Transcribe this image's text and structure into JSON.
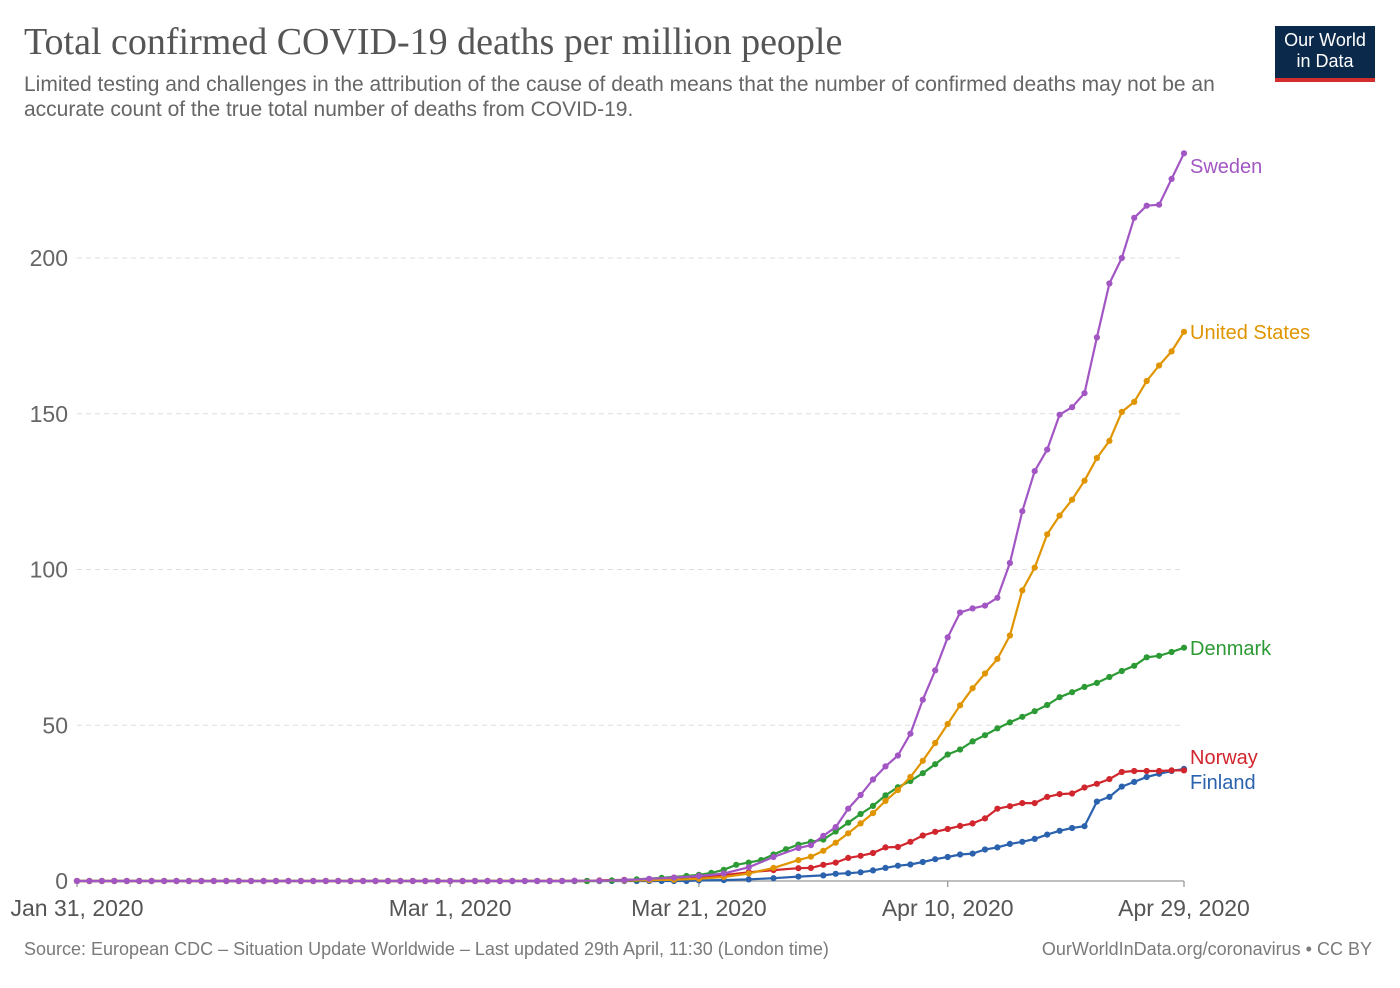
{
  "title": "Total confirmed COVID-19 deaths per million people",
  "subtitle": "Limited testing and challenges in the attribution of the cause of death means that the number of confirmed deaths may not be an accurate count of the true total number of deaths from COVID-19.",
  "logo": {
    "line1": "Our World",
    "line2": "in Data"
  },
  "footer": {
    "source": "Source: European CDC – Situation Update Worldwide – Last updated 29th April, 11:30 (London time)",
    "credit": "OurWorldInData.org/coronavirus • CC BY"
  },
  "chart_data": {
    "type": "line",
    "x_start": "2020-01-31",
    "x_end": "2020-04-29",
    "y_ticks": [
      0,
      50,
      100,
      150,
      200
    ],
    "x_ticks": [
      {
        "date": "2020-01-31",
        "label": "Jan 31, 2020"
      },
      {
        "date": "2020-03-01",
        "label": "Mar 1, 2020"
      },
      {
        "date": "2020-03-21",
        "label": "Mar 21, 2020"
      },
      {
        "date": "2020-04-10",
        "label": "Apr 10, 2020"
      },
      {
        "date": "2020-04-29",
        "label": "Apr 29, 2020"
      }
    ],
    "ylim": [
      0,
      232
    ],
    "grid": true,
    "legend": "end-of-line labels",
    "series": [
      {
        "name": "Sweden",
        "color": "#a256c3",
        "points": [
          [
            "2020-03-11",
            0.1
          ],
          [
            "2020-03-13",
            0.1
          ],
          [
            "2020-03-15",
            0.3
          ],
          [
            "2020-03-17",
            0.7
          ],
          [
            "2020-03-19",
            1.1
          ],
          [
            "2020-03-21",
            1.6
          ],
          [
            "2020-03-23",
            2.4
          ],
          [
            "2020-03-25",
            4.4
          ],
          [
            "2020-03-27",
            7.7
          ],
          [
            "2020-03-29",
            10.6
          ],
          [
            "2020-03-30",
            11.5
          ],
          [
            "2020-03-31",
            14.5
          ],
          [
            "2020-04-01",
            17.3
          ],
          [
            "2020-04-02",
            23.2
          ],
          [
            "2020-04-03",
            27.6
          ],
          [
            "2020-04-04",
            32.6
          ],
          [
            "2020-04-05",
            36.8
          ],
          [
            "2020-04-06",
            40.3
          ],
          [
            "2020-04-07",
            47.3
          ],
          [
            "2020-04-08",
            58.2
          ],
          [
            "2020-04-09",
            67.6
          ],
          [
            "2020-04-10",
            78.2
          ],
          [
            "2020-04-11",
            86.2
          ],
          [
            "2020-04-12",
            87.5
          ],
          [
            "2020-04-13",
            88.4
          ],
          [
            "2020-04-14",
            90.9
          ],
          [
            "2020-04-15",
            102.1
          ],
          [
            "2020-04-16",
            118.7
          ],
          [
            "2020-04-17",
            131.6
          ],
          [
            "2020-04-18",
            138.5
          ],
          [
            "2020-04-19",
            149.7
          ],
          [
            "2020-04-20",
            152.1
          ],
          [
            "2020-04-21",
            156.6
          ],
          [
            "2020-04-22",
            174.5
          ],
          [
            "2020-04-23",
            191.8
          ],
          [
            "2020-04-24",
            200.0
          ],
          [
            "2020-04-25",
            212.9
          ],
          [
            "2020-04-26",
            216.8
          ],
          [
            "2020-04-27",
            217.1
          ],
          [
            "2020-04-28",
            225.4
          ],
          [
            "2020-04-29",
            233.6
          ]
        ]
      },
      {
        "name": "United States",
        "color": "#e09500",
        "points": [
          [
            "2020-03-05",
            0.03
          ],
          [
            "2020-03-09",
            0.06
          ],
          [
            "2020-03-13",
            0.13
          ],
          [
            "2020-03-15",
            0.16
          ],
          [
            "2020-03-17",
            0.26
          ],
          [
            "2020-03-19",
            0.4
          ],
          [
            "2020-03-21",
            0.7
          ],
          [
            "2020-03-23",
            1.3
          ],
          [
            "2020-03-25",
            2.4
          ],
          [
            "2020-03-27",
            4.2
          ],
          [
            "2020-03-29",
            6.7
          ],
          [
            "2020-03-30",
            7.8
          ],
          [
            "2020-03-31",
            9.7
          ],
          [
            "2020-04-01",
            12.3
          ],
          [
            "2020-04-02",
            15.3
          ],
          [
            "2020-04-03",
            18.5
          ],
          [
            "2020-04-04",
            21.8
          ],
          [
            "2020-04-05",
            25.7
          ],
          [
            "2020-04-06",
            29.2
          ],
          [
            "2020-04-07",
            33.4
          ],
          [
            "2020-04-08",
            38.6
          ],
          [
            "2020-04-09",
            44.3
          ],
          [
            "2020-04-10",
            50.4
          ],
          [
            "2020-04-11",
            56.4
          ],
          [
            "2020-04-12",
            61.9
          ],
          [
            "2020-04-13",
            66.6
          ],
          [
            "2020-04-14",
            71.3
          ],
          [
            "2020-04-15",
            78.8
          ],
          [
            "2020-04-16",
            93.3
          ],
          [
            "2020-04-17",
            100.6
          ],
          [
            "2020-04-18",
            111.3
          ],
          [
            "2020-04-19",
            117.3
          ],
          [
            "2020-04-20",
            122.4
          ],
          [
            "2020-04-21",
            128.5
          ],
          [
            "2020-04-22",
            135.8
          ],
          [
            "2020-04-23",
            141.3
          ],
          [
            "2020-04-24",
            150.6
          ],
          [
            "2020-04-25",
            153.8
          ],
          [
            "2020-04-26",
            160.5
          ],
          [
            "2020-04-27",
            165.5
          ],
          [
            "2020-04-28",
            170.0
          ],
          [
            "2020-04-29",
            176.3
          ]
        ]
      },
      {
        "name": "Denmark",
        "color": "#2c9a35",
        "points": [
          [
            "2020-03-14",
            0.2
          ],
          [
            "2020-03-16",
            0.5
          ],
          [
            "2020-03-18",
            1.0
          ],
          [
            "2020-03-20",
            1.6
          ],
          [
            "2020-03-21",
            2.0
          ],
          [
            "2020-03-22",
            2.6
          ],
          [
            "2020-03-23",
            3.6
          ],
          [
            "2020-03-24",
            5.2
          ],
          [
            "2020-03-25",
            5.9
          ],
          [
            "2020-03-26",
            6.7
          ],
          [
            "2020-03-27",
            8.5
          ],
          [
            "2020-03-28",
            10.2
          ],
          [
            "2020-03-29",
            11.7
          ],
          [
            "2020-03-30",
            12.6
          ],
          [
            "2020-03-31",
            13.3
          ],
          [
            "2020-04-01",
            15.9
          ],
          [
            "2020-04-02",
            18.7
          ],
          [
            "2020-04-03",
            21.5
          ],
          [
            "2020-04-04",
            24.1
          ],
          [
            "2020-04-05",
            27.5
          ],
          [
            "2020-04-06",
            30.1
          ],
          [
            "2020-04-07",
            32.1
          ],
          [
            "2020-04-08",
            34.6
          ],
          [
            "2020-04-09",
            37.5
          ],
          [
            "2020-04-10",
            40.6
          ],
          [
            "2020-04-11",
            42.2
          ],
          [
            "2020-04-12",
            44.8
          ],
          [
            "2020-04-13",
            46.8
          ],
          [
            "2020-04-14",
            49.0
          ],
          [
            "2020-04-15",
            50.9
          ],
          [
            "2020-04-16",
            52.7
          ],
          [
            "2020-04-17",
            54.5
          ],
          [
            "2020-04-18",
            56.5
          ],
          [
            "2020-04-19",
            59.0
          ],
          [
            "2020-04-20",
            60.6
          ],
          [
            "2020-04-21",
            62.3
          ],
          [
            "2020-04-22",
            63.6
          ],
          [
            "2020-04-23",
            65.5
          ],
          [
            "2020-04-24",
            67.4
          ],
          [
            "2020-04-25",
            69.1
          ],
          [
            "2020-04-26",
            71.8
          ],
          [
            "2020-04-27",
            72.3
          ],
          [
            "2020-04-28",
            73.5
          ],
          [
            "2020-04-29",
            74.9
          ]
        ]
      },
      {
        "name": "Norway",
        "color": "#d1262d",
        "points": [
          [
            "2020-03-13",
            0.2
          ],
          [
            "2020-03-15",
            0.4
          ],
          [
            "2020-03-17",
            0.6
          ],
          [
            "2020-03-19",
            1.1
          ],
          [
            "2020-03-21",
            1.3
          ],
          [
            "2020-03-23",
            1.9
          ],
          [
            "2020-03-25",
            2.8
          ],
          [
            "2020-03-27",
            3.5
          ],
          [
            "2020-03-29",
            4.1
          ],
          [
            "2020-03-30",
            4.2
          ],
          [
            "2020-03-31",
            5.2
          ],
          [
            "2020-04-01",
            5.9
          ],
          [
            "2020-04-02",
            7.4
          ],
          [
            "2020-04-03",
            8.1
          ],
          [
            "2020-04-04",
            9.0
          ],
          [
            "2020-04-05",
            10.8
          ],
          [
            "2020-04-06",
            10.9
          ],
          [
            "2020-04-07",
            12.6
          ],
          [
            "2020-04-08",
            14.6
          ],
          [
            "2020-04-09",
            15.8
          ],
          [
            "2020-04-10",
            16.7
          ],
          [
            "2020-04-11",
            17.7
          ],
          [
            "2020-04-12",
            18.5
          ],
          [
            "2020-04-13",
            20.1
          ],
          [
            "2020-04-14",
            23.2
          ],
          [
            "2020-04-15",
            24.0
          ],
          [
            "2020-04-16",
            25.0
          ],
          [
            "2020-04-17",
            25.0
          ],
          [
            "2020-04-18",
            27.0
          ],
          [
            "2020-04-19",
            27.9
          ],
          [
            "2020-04-20",
            28.1
          ],
          [
            "2020-04-21",
            30.0
          ],
          [
            "2020-04-22",
            31.2
          ],
          [
            "2020-04-23",
            32.7
          ],
          [
            "2020-04-24",
            35.0
          ],
          [
            "2020-04-25",
            35.3
          ],
          [
            "2020-04-26",
            35.3
          ],
          [
            "2020-04-27",
            35.3
          ],
          [
            "2020-04-28",
            35.5
          ],
          [
            "2020-04-29",
            35.5
          ]
        ]
      },
      {
        "name": "Finland",
        "color": "#2b62ae",
        "points": [
          [
            "2020-03-21",
            0.2
          ],
          [
            "2020-03-23",
            0.3
          ],
          [
            "2020-03-25",
            0.5
          ],
          [
            "2020-03-27",
            0.9
          ],
          [
            "2020-03-29",
            1.4
          ],
          [
            "2020-03-31",
            1.8
          ],
          [
            "2020-04-01",
            2.3
          ],
          [
            "2020-04-02",
            2.5
          ],
          [
            "2020-04-03",
            2.8
          ],
          [
            "2020-04-04",
            3.4
          ],
          [
            "2020-04-05",
            4.2
          ],
          [
            "2020-04-06",
            4.9
          ],
          [
            "2020-04-07",
            5.3
          ],
          [
            "2020-04-08",
            6.1
          ],
          [
            "2020-04-09",
            7.0
          ],
          [
            "2020-04-10",
            7.7
          ],
          [
            "2020-04-11",
            8.5
          ],
          [
            "2020-04-12",
            8.8
          ],
          [
            "2020-04-13",
            10.1
          ],
          [
            "2020-04-14",
            10.8
          ],
          [
            "2020-04-15",
            11.9
          ],
          [
            "2020-04-16",
            12.6
          ],
          [
            "2020-04-17",
            13.5
          ],
          [
            "2020-04-18",
            14.9
          ],
          [
            "2020-04-19",
            16.1
          ],
          [
            "2020-04-20",
            17.0
          ],
          [
            "2020-04-21",
            17.6
          ],
          [
            "2020-04-22",
            25.5
          ],
          [
            "2020-04-23",
            27.0
          ],
          [
            "2020-04-24",
            30.3
          ],
          [
            "2020-04-25",
            31.8
          ],
          [
            "2020-04-26",
            33.4
          ],
          [
            "2020-04-27",
            34.4
          ],
          [
            "2020-04-28",
            35.3
          ],
          [
            "2020-04-29",
            36.0
          ]
        ]
      }
    ]
  }
}
